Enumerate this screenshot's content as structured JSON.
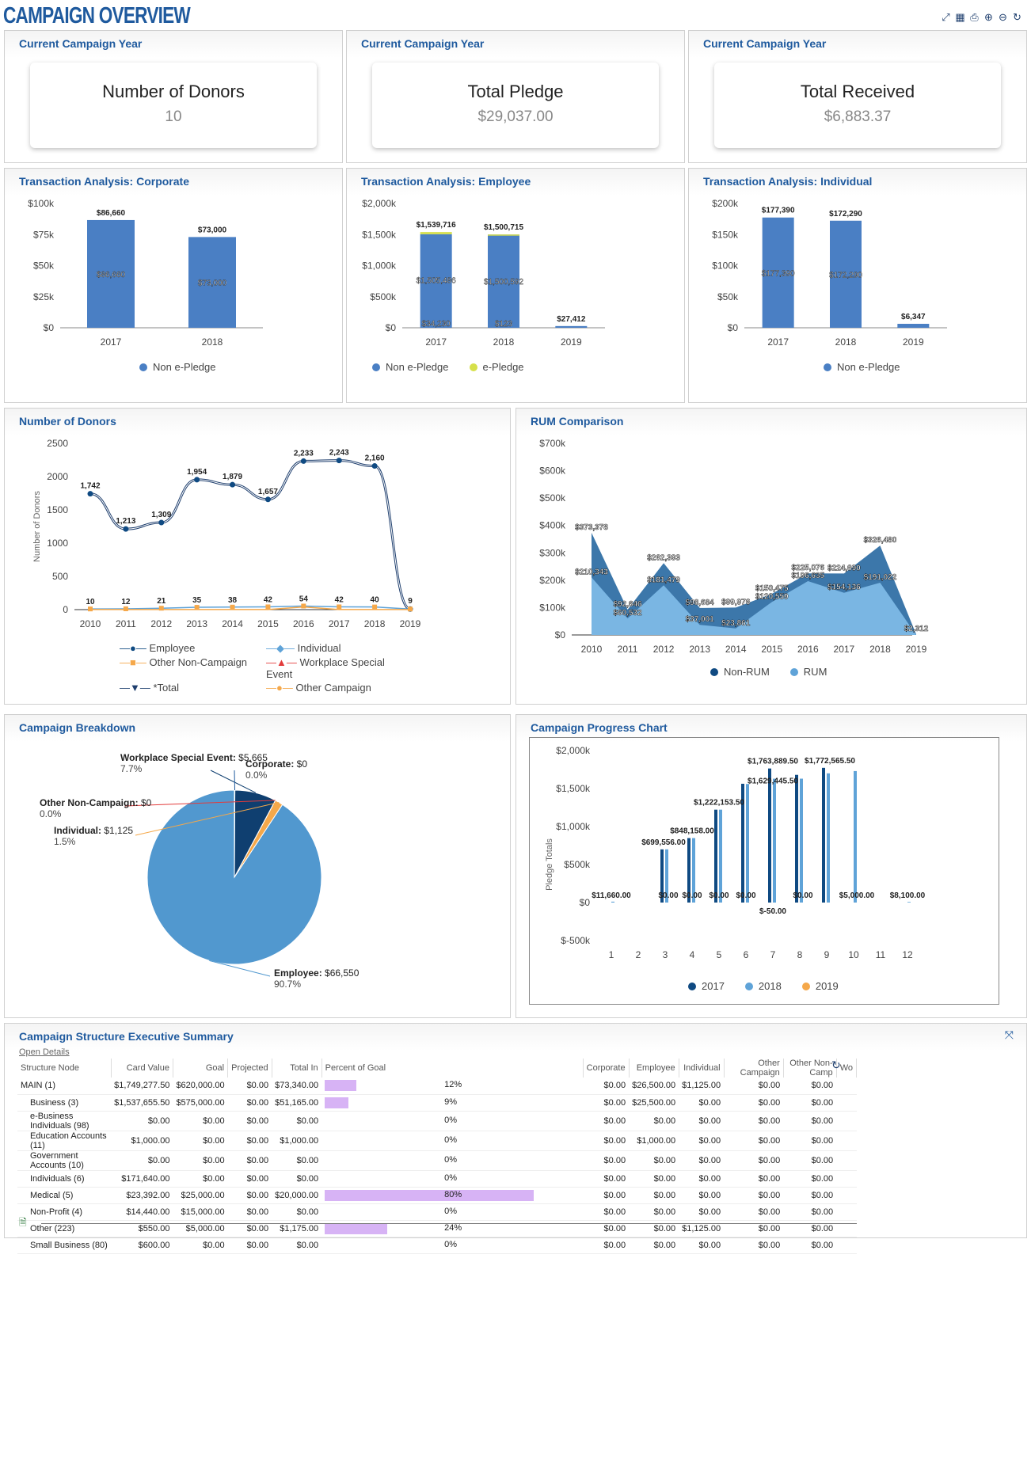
{
  "header": {
    "title": "CAMPAIGN OVERVIEW",
    "icons": [
      "expand-icon",
      "grid-icon",
      "print-icon",
      "add-icon",
      "remove-icon",
      "refresh-icon"
    ]
  },
  "kpis": [
    {
      "section": "Current Campaign Year",
      "label": "Number of Donors",
      "value": "10"
    },
    {
      "section": "Current Campaign Year",
      "label": "Total Pledge",
      "value": "$29,037.00"
    },
    {
      "section": "Current Campaign Year",
      "label": "Total Received",
      "value": "$6,883.37"
    }
  ],
  "colors": {
    "accent": "#1f5a9e",
    "bar": "#4a7fc4",
    "dark": "#0f4a82",
    "light": "#5fa3d8",
    "orange": "#f5a84a",
    "epledge": "#d6e04a"
  },
  "chart_data": [
    {
      "type": "bar",
      "title": "Transaction Analysis: Corporate",
      "categories": [
        "2017",
        "2018"
      ],
      "series": [
        {
          "name": "Non e-Pledge",
          "values": [
            86660,
            73000
          ]
        }
      ],
      "top_labels": [
        "$86,660",
        "$73,000"
      ],
      "inner_labels": [
        "$86,660",
        "$73,000"
      ],
      "yticks": [
        "$0",
        "$25k",
        "$50k",
        "$75k",
        "$100k"
      ],
      "ylim": [
        0,
        100000
      ],
      "legend": [
        "Non e-Pledge"
      ]
    },
    {
      "type": "bar",
      "title": "Transaction Analysis: Employee",
      "categories": [
        "2017",
        "2018",
        "2019"
      ],
      "series": [
        {
          "name": "Non e-Pledge",
          "values": [
            1505486,
            1500592,
            27412
          ]
        },
        {
          "name": "e-Pledge",
          "values": [
            34230,
            123,
            0
          ]
        }
      ],
      "top_labels": [
        "$1,539,716",
        "$1,500,715",
        "$27,412"
      ],
      "inner_labels": [
        "$1,505,486",
        "$1,500,592"
      ],
      "bottom_labels": [
        "$34,230",
        "$123"
      ],
      "yticks": [
        "$0",
        "$500k",
        "$1,000k",
        "$1,500k",
        "$2,000k"
      ],
      "ylim": [
        0,
        2000000
      ],
      "legend": [
        "Non e-Pledge",
        "e-Pledge"
      ]
    },
    {
      "type": "bar",
      "title": "Transaction Analysis: Individual",
      "categories": [
        "2017",
        "2018",
        "2019"
      ],
      "series": [
        {
          "name": "Non e-Pledge",
          "values": [
            177390,
            172290,
            6347
          ]
        }
      ],
      "top_labels": [
        "$177,390",
        "$172,290",
        "$6,347"
      ],
      "inner_labels": [
        "$177,390",
        "$172,290"
      ],
      "yticks": [
        "$0",
        "$50k",
        "$100k",
        "$150k",
        "$200k"
      ],
      "ylim": [
        0,
        200000
      ],
      "legend": [
        "Non e-Pledge"
      ]
    },
    {
      "type": "line",
      "title": "Number of Donors",
      "ylabel": "Number of Donors",
      "x": [
        "2010",
        "2011",
        "2012",
        "2013",
        "2014",
        "2015",
        "2016",
        "2017",
        "2018",
        "2019"
      ],
      "series": [
        {
          "name": "*Total",
          "values": [
            1742,
            1213,
            1309,
            1954,
            1879,
            1657,
            2233,
            2243,
            2160,
            9
          ],
          "labels": [
            "1,742",
            "1,213",
            "1,309",
            "1,954",
            "1,879",
            "1,657",
            "2,233",
            "2,243",
            "2,160",
            "9"
          ]
        },
        {
          "name": "Individual",
          "values": [
            10,
            12,
            21,
            35,
            38,
            42,
            54,
            42,
            40,
            9
          ],
          "labels": [
            "10",
            "12",
            "21",
            "35",
            "38",
            "42",
            "54",
            "42",
            "40",
            ""
          ]
        }
      ],
      "yticks": [
        "0",
        "500",
        "1000",
        "1500",
        "2000",
        "2500"
      ],
      "ylim": [
        0,
        2500
      ],
      "legend": [
        "Employee",
        "Individual",
        "Other Non-Campaign",
        "Workplace Special Event",
        "*Total",
        "Other Campaign"
      ]
    },
    {
      "type": "area",
      "title": "RUM Comparison",
      "x": [
        "2010",
        "2011",
        "2012",
        "2013",
        "2014",
        "2015",
        "2016",
        "2017",
        "2018",
        "2019"
      ],
      "series": [
        {
          "name": "Non-RUM",
          "values": [
            373378,
            92646,
            262393,
            98684,
            99976,
            150475,
            225076,
            224690,
            326480,
            2312
          ],
          "labels": [
            "$373,378",
            "$92,646",
            "$262,393",
            "$98,684",
            "$99,976",
            "$150,475",
            "$225,076",
            "$224,690",
            "$326,480",
            "$2,312"
          ]
        },
        {
          "name": "RUM",
          "values": [
            210343,
            60532,
            181479,
            37001,
            23861,
            120559,
            196635,
            154136,
            191022,
            0
          ],
          "labels": [
            "$210,343",
            "$60,532",
            "$181,479",
            "$37,001",
            "$23,861",
            "$120,559",
            "$196,635",
            "$154,136",
            "$191,022",
            ""
          ]
        }
      ],
      "yticks": [
        "$0",
        "$100k",
        "$200k",
        "$300k",
        "$400k",
        "$500k",
        "$600k",
        "$700k"
      ],
      "ylim": [
        0,
        700000
      ],
      "legend": [
        "Non-RUM",
        "RUM"
      ]
    },
    {
      "type": "pie",
      "title": "Campaign Breakdown",
      "slices": [
        {
          "name": "Employee",
          "value": "$66,550",
          "pct": 90.7,
          "pct_label": "90.7%"
        },
        {
          "name": "Individual",
          "value": "$1,125",
          "pct": 1.5,
          "pct_label": "1.5%"
        },
        {
          "name": "Other Non-Campaign",
          "value": "$0",
          "pct": 0.0,
          "pct_label": "0.0%"
        },
        {
          "name": "Workplace Special Event",
          "value": "$5,665",
          "pct": 7.7,
          "pct_label": "7.7%"
        },
        {
          "name": "Corporate",
          "value": "$0",
          "pct": 0.0,
          "pct_label": "0.0%"
        }
      ]
    },
    {
      "type": "bar",
      "title": "Campaign Progress Chart",
      "ylabel": "Pledge Totals",
      "categories": [
        "1",
        "2",
        "3",
        "4",
        "5",
        "6",
        "7",
        "8",
        "9",
        "10",
        "11",
        "12"
      ],
      "series": [
        {
          "name": "2017",
          "values": [
            0,
            0,
            699556,
            848158,
            1222153.5,
            1563000,
            1763889.5,
            1680000,
            1772565.5,
            0,
            0,
            0
          ]
        },
        {
          "name": "2018",
          "values": [
            11660,
            0,
            700000,
            848158,
            1222153.5,
            1560000,
            1629445.5,
            1630000,
            1700000,
            1730000,
            0,
            8100
          ]
        },
        {
          "name": "2019",
          "values": [
            0,
            0,
            0,
            0,
            0,
            0,
            0,
            0,
            0,
            0,
            0,
            0
          ]
        }
      ],
      "labels": [
        "$11,660.00",
        "$699,556.00",
        "$848,158.00",
        "$1,222,153.50",
        "$1,763,889.50",
        "$1,629,445.50",
        "$1,772,565.50",
        "$0.00",
        "$5,000.00",
        "$-50.00",
        "$8,100.00"
      ],
      "yticks": [
        "$-500k",
        "$0",
        "$500k",
        "$1,000k",
        "$1,500k",
        "$2,000k"
      ],
      "ylim": [
        -500000,
        2000000
      ],
      "legend": [
        "2017",
        "2018",
        "2019"
      ]
    }
  ],
  "summary": {
    "title": "Campaign Structure Executive Summary",
    "open_details": "Open Details",
    "columns": [
      "Structure Node",
      "Card Value",
      "Goal",
      "Projected",
      "Total In",
      "Percent of Goal",
      "Corporate",
      "Employee",
      "Individual",
      "Other Campaign",
      "Other Non-Camp",
      "Wo"
    ],
    "rows": [
      {
        "node": "MAIN (1)",
        "card": "$1,749,277.50",
        "goal": "$620,000.00",
        "proj": "$0.00",
        "total": "$73,340.00",
        "pct": "12%",
        "pctv": 12,
        "corp": "$0.00",
        "emp": "$26,500.00",
        "ind": "$1,125.00",
        "oc": "$0.00",
        "onc": "$0.00"
      },
      {
        "node": "Business (3)",
        "card": "$1,537,655.50",
        "goal": "$575,000.00",
        "proj": "$0.00",
        "total": "$51,165.00",
        "pct": "9%",
        "pctv": 9,
        "corp": "$0.00",
        "emp": "$25,500.00",
        "ind": "$0.00",
        "oc": "$0.00",
        "onc": "$0.00"
      },
      {
        "node": "e-Business Individuals (98)",
        "card": "$0.00",
        "goal": "$0.00",
        "proj": "$0.00",
        "total": "$0.00",
        "pct": "0%",
        "pctv": 0,
        "corp": "$0.00",
        "emp": "$0.00",
        "ind": "$0.00",
        "oc": "$0.00",
        "onc": "$0.00"
      },
      {
        "node": "Education Accounts (11)",
        "card": "$1,000.00",
        "goal": "$0.00",
        "proj": "$0.00",
        "total": "$1,000.00",
        "pct": "0%",
        "pctv": 0,
        "corp": "$0.00",
        "emp": "$1,000.00",
        "ind": "$0.00",
        "oc": "$0.00",
        "onc": "$0.00"
      },
      {
        "node": "Government Accounts (10)",
        "card": "$0.00",
        "goal": "$0.00",
        "proj": "$0.00",
        "total": "$0.00",
        "pct": "0%",
        "pctv": 0,
        "corp": "$0.00",
        "emp": "$0.00",
        "ind": "$0.00",
        "oc": "$0.00",
        "onc": "$0.00"
      },
      {
        "node": "Individuals (6)",
        "card": "$171,640.00",
        "goal": "$0.00",
        "proj": "$0.00",
        "total": "$0.00",
        "pct": "0%",
        "pctv": 0,
        "corp": "$0.00",
        "emp": "$0.00",
        "ind": "$0.00",
        "oc": "$0.00",
        "onc": "$0.00"
      },
      {
        "node": "Medical (5)",
        "card": "$23,392.00",
        "goal": "$25,000.00",
        "proj": "$0.00",
        "total": "$20,000.00",
        "pct": "80%",
        "pctv": 80,
        "corp": "$0.00",
        "emp": "$0.00",
        "ind": "$0.00",
        "oc": "$0.00",
        "onc": "$0.00"
      },
      {
        "node": "Non-Profit (4)",
        "card": "$14,440.00",
        "goal": "$15,000.00",
        "proj": "$0.00",
        "total": "$0.00",
        "pct": "0%",
        "pctv": 0,
        "corp": "$0.00",
        "emp": "$0.00",
        "ind": "$0.00",
        "oc": "$0.00",
        "onc": "$0.00"
      },
      {
        "node": "Other (223)",
        "card": "$550.00",
        "goal": "$5,000.00",
        "proj": "$0.00",
        "total": "$1,175.00",
        "pct": "24%",
        "pctv": 24,
        "corp": "$0.00",
        "emp": "$0.00",
        "ind": "$1,125.00",
        "oc": "$0.00",
        "onc": "$0.00"
      },
      {
        "node": "Small Business (80)",
        "card": "$600.00",
        "goal": "$0.00",
        "proj": "$0.00",
        "total": "$0.00",
        "pct": "0%",
        "pctv": 0,
        "corp": "$0.00",
        "emp": "$0.00",
        "ind": "$0.00",
        "oc": "$0.00",
        "onc": "$0.00"
      }
    ]
  }
}
